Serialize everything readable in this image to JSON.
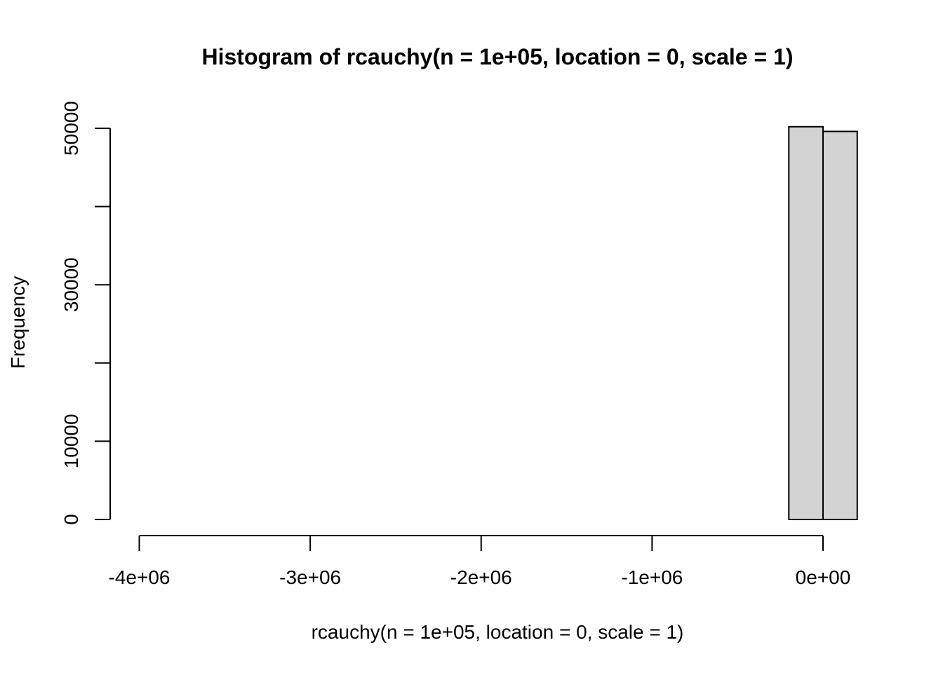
{
  "chart_data": {
    "type": "bar",
    "title": "Histogram of rcauchy(n = 1e+05, location = 0, scale = 1)",
    "xlabel": "rcauchy(n = 1e+05, location = 0, scale = 1)",
    "ylabel": "Frequency",
    "xlim": [
      -4000000,
      200000
    ],
    "ylim": [
      0,
      50000
    ],
    "grid": false,
    "x_ticks": [
      {
        "value": -4000000,
        "label": "-4e+06"
      },
      {
        "value": -3000000,
        "label": "-3e+06"
      },
      {
        "value": -2000000,
        "label": "-2e+06"
      },
      {
        "value": -1000000,
        "label": "-1e+06"
      },
      {
        "value": 0,
        "label": "0e+00"
      }
    ],
    "y_ticks": [
      {
        "value": 0,
        "label": "0"
      },
      {
        "value": 10000,
        "label": "10000"
      },
      {
        "value": 20000,
        "label": ""
      },
      {
        "value": 30000,
        "label": "30000"
      },
      {
        "value": 40000,
        "label": ""
      },
      {
        "value": 50000,
        "label": "50000"
      }
    ],
    "bin_width": 200000,
    "bins": [
      {
        "start": -4000000,
        "end": -200000,
        "count": 0
      },
      {
        "start": -200000,
        "end": 0,
        "count": 50200
      },
      {
        "start": 0,
        "end": 200000,
        "count": 49600
      }
    ],
    "bar_color": "#d3d3d3",
    "bar_border": "#000000"
  }
}
